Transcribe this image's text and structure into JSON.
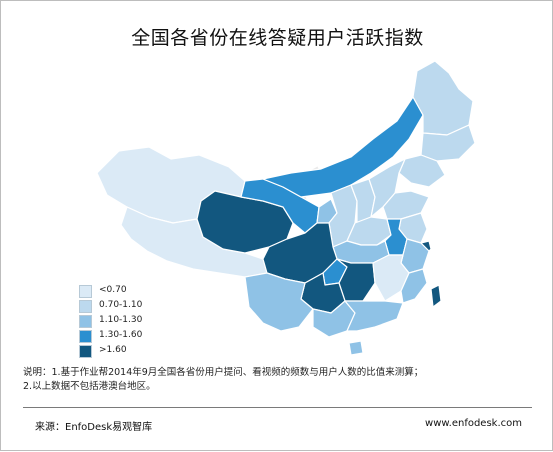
{
  "title": "全国各省份在线答疑用户活跃指数",
  "legend": [
    {
      "label": "<0.70",
      "color": "#dbeaf6"
    },
    {
      "label": "0.70-1.10",
      "color": "#bcd9ee"
    },
    {
      "label": "1.10-1.30",
      "color": "#8fc2e6"
    },
    {
      "label": "1.30-1.60",
      "color": "#2b8fd0"
    },
    {
      "label": ">1.60",
      "color": "#12577f"
    }
  ],
  "notes": {
    "line1": "说明：1.基于作业帮2014年9月全国各省份用户提问、看视频的频数与用户人数的比值来测算；",
    "line2": "2.以上数据不包括港澳台地区。"
  },
  "footer": {
    "source": "来源：EnfoDesk易观智库",
    "site": "www.enfodesk.com"
  },
  "watermark": "易观智库"
}
